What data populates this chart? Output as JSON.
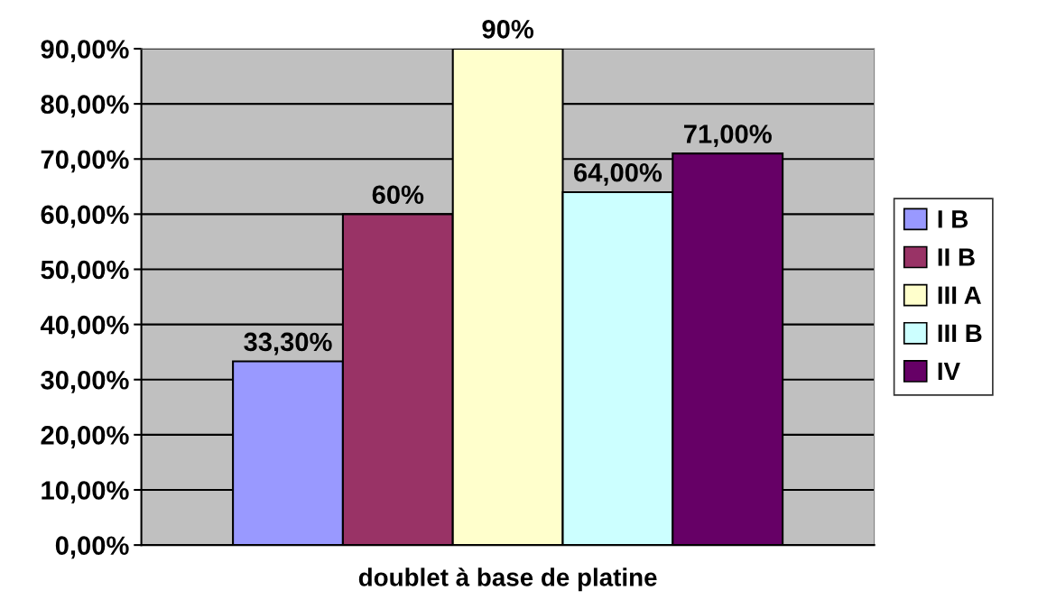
{
  "chart_data": {
    "type": "bar",
    "categories": [
      "doublet à base de platine"
    ],
    "series": [
      {
        "name": "I B",
        "color": "#9999ff",
        "values": [
          33.3
        ],
        "value_labels": [
          "33,30%"
        ]
      },
      {
        "name": "II B",
        "color": "#993366",
        "values": [
          60
        ],
        "value_labels": [
          "60%"
        ]
      },
      {
        "name": "III A",
        "color": "#ffffcc",
        "values": [
          90
        ],
        "value_labels": [
          "90%"
        ]
      },
      {
        "name": "III B",
        "color": "#ccffff",
        "values": [
          64
        ],
        "value_labels": [
          "64,00%"
        ]
      },
      {
        "name": "IV",
        "color": "#660066",
        "values": [
          71
        ],
        "value_labels": [
          "71,00%"
        ]
      }
    ],
    "ylim": [
      0,
      90
    ],
    "yticks": [
      {
        "value": 0,
        "label": "0,00%"
      },
      {
        "value": 10,
        "label": "10,00%"
      },
      {
        "value": 20,
        "label": "20,00%"
      },
      {
        "value": 30,
        "label": "30,00%"
      },
      {
        "value": 40,
        "label": "40,00%"
      },
      {
        "value": 50,
        "label": "50,00%"
      },
      {
        "value": 60,
        "label": "60,00%"
      },
      {
        "value": 70,
        "label": "70,00%"
      },
      {
        "value": 80,
        "label": "80,00%"
      },
      {
        "value": 90,
        "label": "90,00%"
      }
    ],
    "grid": "y",
    "legend": "right"
  }
}
